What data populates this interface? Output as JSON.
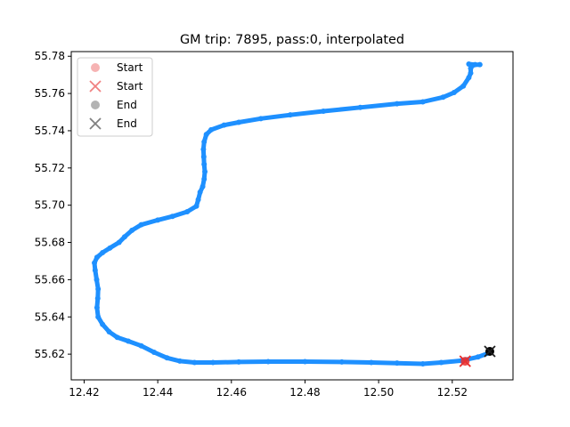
{
  "chart_data": {
    "type": "scatter",
    "title": "GM trip: 7895, pass:0, interpolated",
    "xlabel": "",
    "ylabel": "",
    "xlim": [
      12.4165,
      12.5365
    ],
    "ylim": [
      55.6062,
      55.7825
    ],
    "x_ticks": [
      "12.42",
      "12.44",
      "12.46",
      "12.48",
      "12.50",
      "12.52"
    ],
    "y_ticks": [
      "55.62",
      "55.64",
      "55.66",
      "55.68",
      "55.70",
      "55.72",
      "55.74",
      "55.76",
      "55.78"
    ],
    "grid": false,
    "legend": {
      "placement": "top-left",
      "entries": [
        {
          "label": "Start",
          "marker": "circle",
          "color": "#f08080",
          "alpha": 0.6
        },
        {
          "label": "Start",
          "marker": "x",
          "color": "#f08080",
          "alpha": 1.0
        },
        {
          "label": "End",
          "marker": "circle",
          "color": "#808080",
          "alpha": 0.6
        },
        {
          "label": "End",
          "marker": "x",
          "color": "#808080",
          "alpha": 1.0
        }
      ]
    },
    "colors": {
      "trajectory": "#1e90ff",
      "start_circle": "#e83030",
      "start_x": "#e83030",
      "end_circle": "#000000",
      "end_x": "#202020"
    },
    "series": [
      {
        "name": "trajectory",
        "points": [
          [
            12.5305,
            55.621
          ],
          [
            12.527,
            55.6185
          ],
          [
            12.5225,
            55.6165
          ],
          [
            12.517,
            55.6155
          ],
          [
            12.512,
            55.6148
          ],
          [
            12.505,
            55.6152
          ],
          [
            12.498,
            55.6155
          ],
          [
            12.49,
            55.6158
          ],
          [
            12.48,
            55.616
          ],
          [
            12.47,
            55.616
          ],
          [
            12.462,
            55.6158
          ],
          [
            12.455,
            55.6155
          ],
          [
            12.45,
            55.6155
          ],
          [
            12.446,
            55.6163
          ],
          [
            12.4425,
            55.618
          ],
          [
            12.439,
            55.621
          ],
          [
            12.4355,
            55.6245
          ],
          [
            12.432,
            55.627
          ],
          [
            12.429,
            55.629
          ],
          [
            12.4268,
            55.632
          ],
          [
            12.425,
            55.636
          ],
          [
            12.4238,
            55.64
          ],
          [
            12.4235,
            55.645
          ],
          [
            12.4237,
            55.65
          ],
          [
            12.4238,
            55.655
          ],
          [
            12.4234,
            55.66
          ],
          [
            12.423,
            55.665
          ],
          [
            12.4228,
            55.669
          ],
          [
            12.4235,
            55.672
          ],
          [
            12.425,
            55.6745
          ],
          [
            12.427,
            55.677
          ],
          [
            12.4295,
            55.68
          ],
          [
            12.431,
            55.683
          ],
          [
            12.433,
            55.6865
          ],
          [
            12.4355,
            55.6895
          ],
          [
            12.44,
            55.692
          ],
          [
            12.444,
            55.694
          ],
          [
            12.448,
            55.6965
          ],
          [
            12.4505,
            55.6995
          ],
          [
            12.451,
            55.703
          ],
          [
            12.4515,
            55.707
          ],
          [
            12.4522,
            55.71
          ],
          [
            12.4526,
            55.714
          ],
          [
            12.4528,
            55.718
          ],
          [
            12.4526,
            55.722
          ],
          [
            12.4525,
            55.726
          ],
          [
            12.4524,
            55.73
          ],
          [
            12.4526,
            55.734
          ],
          [
            12.4532,
            55.738
          ],
          [
            12.4545,
            55.7405
          ],
          [
            12.458,
            55.743
          ],
          [
            12.462,
            55.7445
          ],
          [
            12.468,
            55.7465
          ],
          [
            12.476,
            55.7485
          ],
          [
            12.485,
            55.7505
          ],
          [
            12.495,
            55.7525
          ],
          [
            12.505,
            55.7545
          ],
          [
            12.512,
            55.7555
          ],
          [
            12.5175,
            55.758
          ],
          [
            12.5205,
            55.7605
          ],
          [
            12.523,
            55.764
          ],
          [
            12.5245,
            55.7685
          ],
          [
            12.525,
            55.771
          ],
          [
            12.525,
            55.7735
          ],
          [
            12.5255,
            55.775
          ],
          [
            12.5245,
            55.7758
          ],
          [
            12.5262,
            55.7755
          ],
          [
            12.5275,
            55.7755
          ]
        ]
      },
      {
        "name": "start",
        "points": [
          [
            12.5235,
            55.6162
          ]
        ]
      },
      {
        "name": "end",
        "points": [
          [
            12.5302,
            55.6215
          ]
        ]
      }
    ]
  }
}
